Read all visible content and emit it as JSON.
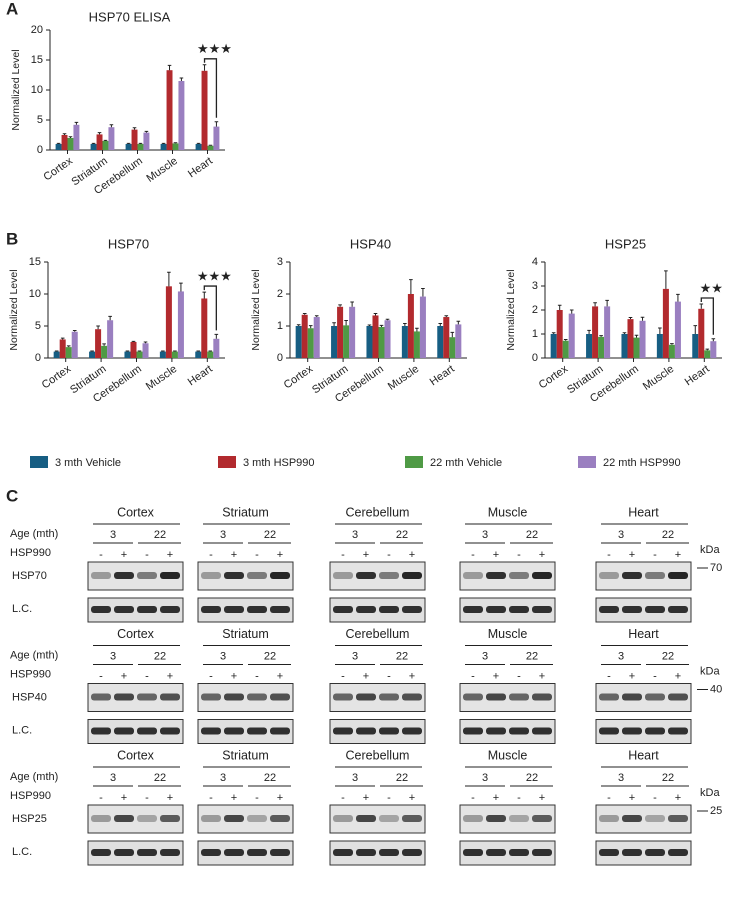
{
  "panels": [
    "A",
    "B",
    "C"
  ],
  "chart_data": [
    {
      "type": "bar",
      "title": "HSP70 ELISA",
      "y_label": "Normalized Level",
      "categories": [
        "Cortex",
        "Striatum",
        "Cerebellum",
        "Muscle",
        "Heart"
      ],
      "ylim": [
        0,
        20
      ],
      "yticks": [
        0,
        5,
        10,
        15,
        20
      ],
      "annotation": "★★★",
      "series": [
        {
          "color": "#175e83",
          "values": [
            1,
            1,
            1,
            1,
            1
          ],
          "errors": [
            0.1,
            0.1,
            0.1,
            0.1,
            0.1
          ]
        },
        {
          "color": "#b22a2e",
          "values": [
            2.5,
            2.6,
            3.4,
            13.3,
            13.2
          ],
          "errors": [
            0.2,
            0.3,
            0.3,
            0.8,
            1.0
          ]
        },
        {
          "color": "#4f9a45",
          "values": [
            2.0,
            1.5,
            1.0,
            1.1,
            0.7
          ],
          "errors": [
            0.2,
            0.1,
            0.1,
            0.1,
            0.1
          ]
        },
        {
          "color": "#9a7fc0",
          "values": [
            4.2,
            3.8,
            2.9,
            11.5,
            3.9
          ],
          "errors": [
            0.4,
            0.4,
            0.2,
            0.5,
            0.8
          ]
        }
      ]
    },
    {
      "type": "bar",
      "title": "HSP70",
      "y_label": "Normalized Level",
      "categories": [
        "Cortex",
        "Striatum",
        "Cerebellum",
        "Muscle",
        "Heart"
      ],
      "ylim": [
        0,
        15
      ],
      "yticks": [
        0,
        5,
        10,
        15
      ],
      "annotation": "★★★",
      "series": [
        {
          "name": "3 mth Vehicle",
          "color": "#175e83",
          "values": [
            1,
            1,
            1,
            1,
            1
          ],
          "errors": [
            0.1,
            0.1,
            0.1,
            0.1,
            0.1
          ]
        },
        {
          "name": "3 mth HSP990",
          "color": "#b22a2e",
          "values": [
            2.9,
            4.5,
            2.5,
            11.2,
            9.3
          ],
          "errors": [
            0.2,
            0.5,
            0.1,
            2.2,
            1.0
          ]
        },
        {
          "name": "22 mth Vehicle",
          "color": "#4f9a45",
          "values": [
            1.7,
            1.9,
            1.0,
            1.0,
            1.0
          ],
          "errors": [
            0.2,
            0.3,
            0.1,
            0.1,
            0.1
          ]
        },
        {
          "name": "22 mth HSP990",
          "color": "#9a7fc0",
          "values": [
            4.1,
            5.9,
            2.3,
            10.4,
            3.0
          ],
          "errors": [
            0.2,
            0.6,
            0.2,
            1.3,
            0.7
          ]
        }
      ]
    },
    {
      "type": "bar",
      "title": "HSP40",
      "y_label": "Normalized Level",
      "categories": [
        "Cortex",
        "Striatum",
        "Cerebellum",
        "Muscle",
        "Heart"
      ],
      "ylim": [
        0,
        3
      ],
      "yticks": [
        0,
        1,
        2,
        3
      ],
      "series": [
        {
          "color": "#175e83",
          "values": [
            1,
            1,
            1,
            1,
            1
          ],
          "errors": [
            0.04,
            0.1,
            0.03,
            0.08,
            0.08
          ]
        },
        {
          "color": "#b22a2e",
          "values": [
            1.35,
            1.6,
            1.33,
            2.0,
            1.28
          ],
          "errors": [
            0.04,
            0.06,
            0.06,
            0.45,
            0.04
          ]
        },
        {
          "color": "#4f9a45",
          "values": [
            0.93,
            1.02,
            0.97,
            0.83,
            0.65
          ],
          "errors": [
            0.08,
            0.15,
            0.05,
            0.1,
            0.15
          ]
        },
        {
          "color": "#9a7fc0",
          "values": [
            1.28,
            1.6,
            1.18,
            1.92,
            1.05
          ],
          "errors": [
            0.04,
            0.15,
            0.03,
            0.25,
            0.1
          ]
        }
      ]
    },
    {
      "type": "bar",
      "title": "HSP25",
      "y_label": "Normalized Level",
      "categories": [
        "Cortex",
        "Striatum",
        "Cerebellum",
        "Muscle",
        "Heart"
      ],
      "ylim": [
        0,
        4
      ],
      "yticks": [
        0,
        1,
        2,
        3,
        4
      ],
      "annotation": "★★",
      "series": [
        {
          "color": "#175e83",
          "values": [
            1,
            1,
            1,
            1,
            1
          ],
          "errors": [
            0.05,
            0.15,
            0.05,
            0.25,
            0.35
          ]
        },
        {
          "color": "#b22a2e",
          "values": [
            2.0,
            2.15,
            1.62,
            2.88,
            2.05
          ],
          "errors": [
            0.2,
            0.15,
            0.07,
            0.75,
            0.2
          ]
        },
        {
          "color": "#4f9a45",
          "values": [
            0.72,
            0.88,
            0.85,
            0.55,
            0.32
          ],
          "errors": [
            0.05,
            0.05,
            0.1,
            0.05,
            0.05
          ]
        },
        {
          "color": "#9a7fc0",
          "values": [
            1.85,
            2.15,
            1.55,
            2.35,
            0.7
          ],
          "errors": [
            0.15,
            0.25,
            0.15,
            0.3,
            0.1
          ]
        }
      ]
    }
  ],
  "blots": {
    "tissues": [
      "Cortex",
      "Striatum",
      "Cerebellum",
      "Muscle",
      "Heart"
    ],
    "age_label": "Age (mth)",
    "ages": [
      "3",
      "22"
    ],
    "drug_label": "HSP990",
    "signs": [
      "-",
      "+"
    ],
    "kda": "kDa",
    "loading_control": "L.C.",
    "rows": [
      {
        "protein": "HSP70",
        "marker": "70"
      },
      {
        "protein": "HSP40",
        "marker": "40"
      },
      {
        "protein": "HSP25",
        "marker": "25"
      }
    ]
  }
}
